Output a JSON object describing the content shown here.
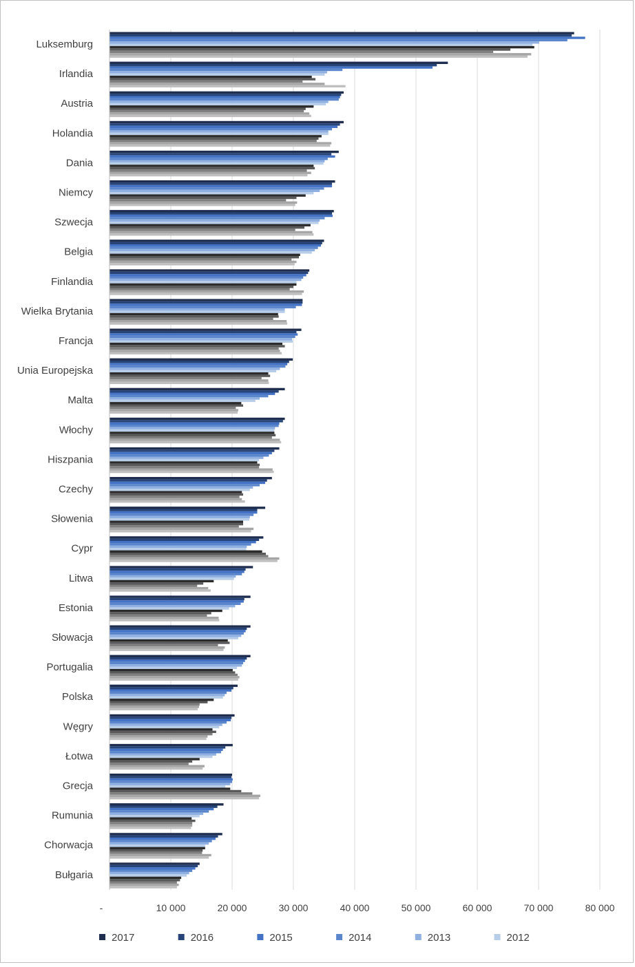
{
  "chart_data": {
    "type": "bar",
    "orientation": "horizontal",
    "title": "",
    "xlabel": "",
    "ylabel": "",
    "xlim": [
      0,
      80000
    ],
    "x_ticks": [
      0,
      10000,
      20000,
      30000,
      40000,
      50000,
      60000,
      70000,
      80000
    ],
    "x_tick_labels": [
      "-",
      "10 000",
      "20 000",
      "30 000",
      "40 000",
      "50 000",
      "60 000",
      "70 000",
      "80 000"
    ],
    "grid": true,
    "legend_position": "bottom",
    "categories": [
      "Luksemburg",
      "Irlandia",
      "Austria",
      "Holandia",
      "Dania",
      "Niemcy",
      "Szwecja",
      "Belgia",
      "Finlandia",
      "Wielka Brytania",
      "Francja",
      "Unia Europejska",
      "Malta",
      "Włochy",
      "Hiszpania",
      "Czechy",
      "Słowenia",
      "Cypr",
      "Litwa",
      "Estonia",
      "Słowacja",
      "Portugalia",
      "Polska",
      "Węgry",
      "Łotwa",
      "Grecja",
      "Rumunia",
      "Chorwacja",
      "Bułgaria"
    ],
    "series": [
      {
        "name": "2017",
        "color": "#1f2d4f",
        "values": [
          75800,
          55200,
          38200,
          38200,
          37400,
          36800,
          36600,
          35000,
          32600,
          31500,
          31300,
          29900,
          28600,
          28600,
          27700,
          26500,
          25400,
          25100,
          23400,
          23000,
          23000,
          23000,
          20900,
          20400,
          20100,
          20000,
          18600,
          18400,
          14700
        ]
      },
      {
        "name": "2016",
        "color": "#264478",
        "values": [
          75400,
          53400,
          37800,
          37600,
          36200,
          36300,
          36300,
          34700,
          32400,
          31500,
          30500,
          29300,
          27600,
          28300,
          26900,
          25700,
          24100,
          24400,
          22200,
          22000,
          22400,
          22400,
          20200,
          19900,
          18900,
          19900,
          17600,
          17700,
          14400
        ]
      },
      {
        "name": "2015",
        "color": "#4472c4",
        "values": [
          77600,
          52700,
          37600,
          37200,
          36800,
          36300,
          36400,
          34500,
          32100,
          31400,
          30700,
          29000,
          27000,
          27700,
          26500,
          25400,
          24100,
          23900,
          22000,
          21900,
          22200,
          22100,
          19900,
          19800,
          18500,
          20100,
          17000,
          17300,
          14000
        ]
      },
      {
        "name": "2014",
        "color": "#5b86cc",
        "values": [
          74700,
          38000,
          37400,
          36300,
          35600,
          35000,
          35100,
          34000,
          31600,
          30400,
          30300,
          28700,
          25900,
          27600,
          26000,
          24500,
          23500,
          23100,
          21600,
          21400,
          21900,
          21800,
          19100,
          19100,
          18200,
          20000,
          16200,
          16700,
          13500
        ]
      },
      {
        "name": "2013",
        "color": "#8fb0e0",
        "values": [
          70100,
          35500,
          35700,
          35700,
          35100,
          34300,
          34300,
          33500,
          31300,
          28600,
          29800,
          27800,
          24500,
          27000,
          25100,
          23400,
          22900,
          22400,
          20600,
          20500,
          21500,
          21600,
          18800,
          18400,
          17400,
          19700,
          15300,
          16200,
          13000
        ]
      },
      {
        "name": "2012",
        "color": "#b7cde8",
        "values": [
          69000,
          35100,
          35300,
          35700,
          34900,
          33300,
          34100,
          33000,
          30500,
          28600,
          29900,
          27200,
          23800,
          26900,
          24400,
          22900,
          22800,
          22300,
          20300,
          19500,
          21000,
          20800,
          18500,
          17900,
          16800,
          18900,
          14700,
          15600,
          12600
        ]
      },
      {
        "name": "",
        "color": "#2b2b2b",
        "values": [
          69300,
          33000,
          33300,
          34600,
          33300,
          32000,
          32800,
          31100,
          30500,
          27500,
          28200,
          25900,
          21500,
          26900,
          24100,
          21600,
          21800,
          24900,
          17000,
          18400,
          19300,
          20100,
          17000,
          16800,
          14700,
          19700,
          13400,
          15600,
          11700
        ]
      },
      {
        "name": "",
        "color": "#595959",
        "values": [
          65400,
          33600,
          32000,
          34100,
          33500,
          30500,
          31800,
          30900,
          30000,
          27600,
          28600,
          26200,
          21800,
          27100,
          24500,
          21800,
          21800,
          25500,
          15300,
          16600,
          19600,
          20500,
          16000,
          17400,
          13500,
          21500,
          14000,
          15200,
          11500
        ]
      },
      {
        "name": "",
        "color": "#7f7f7f",
        "values": [
          62600,
          31500,
          31700,
          33800,
          32200,
          28800,
          30300,
          29700,
          29400,
          26700,
          27600,
          24800,
          20600,
          26500,
          24400,
          21200,
          21100,
          25900,
          14300,
          15900,
          17700,
          20900,
          14700,
          16800,
          12900,
          23300,
          13500,
          15100,
          11000
        ]
      },
      {
        "name": "",
        "color": "#a6a6a6",
        "values": [
          68800,
          35100,
          32600,
          36200,
          32900,
          30600,
          33100,
          30500,
          31700,
          28900,
          27800,
          25900,
          21000,
          27800,
          26600,
          21600,
          23500,
          27700,
          16100,
          17800,
          18800,
          21200,
          14600,
          16000,
          15500,
          24600,
          13500,
          16600,
          11300
        ]
      },
      {
        "name": "",
        "color": "#bfbfbf",
        "values": [
          68200,
          38500,
          32900,
          36000,
          32300,
          30300,
          33300,
          30200,
          31400,
          29000,
          28100,
          26000,
          20900,
          28000,
          26800,
          22100,
          23100,
          27400,
          16500,
          17900,
          18600,
          21000,
          14400,
          15800,
          15200,
          24400,
          13300,
          16200,
          11000
        ]
      }
    ]
  }
}
